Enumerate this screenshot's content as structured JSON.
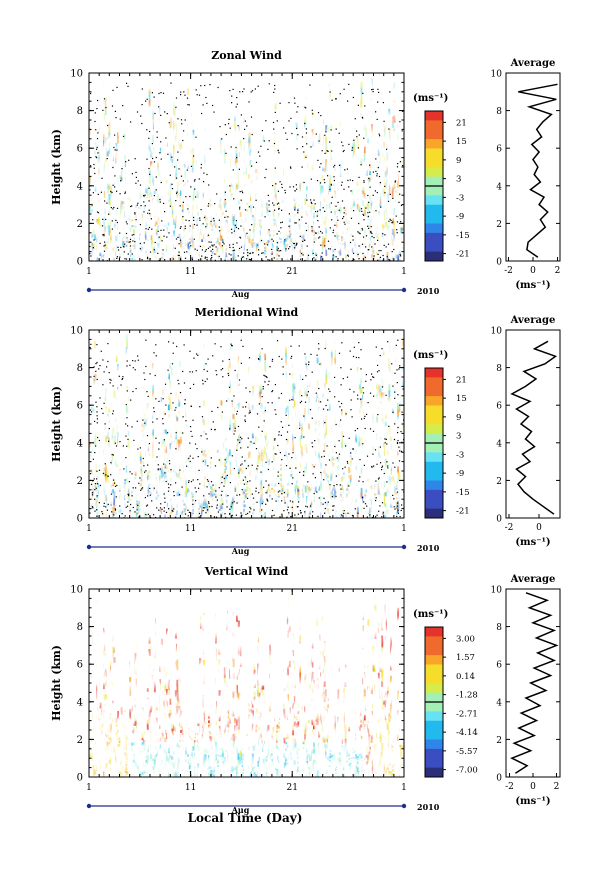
{
  "figure": {
    "xlabel": "Local Time (Day)",
    "month": "Aug",
    "year": "2010",
    "unit_label": "(ms⁻¹)",
    "ylabel": "Height (km)",
    "profile_title": "Average"
  },
  "chart_data": [
    {
      "type": "heatmap",
      "title": "Zonal Wind",
      "xlabel": "Aug",
      "ylabel": "Height (km)",
      "xticks": [
        "1",
        "11",
        "21",
        "1"
      ],
      "xlim_day": [
        1,
        32
      ],
      "yticks": [
        0,
        2,
        4,
        6,
        8,
        10
      ],
      "ylim": [
        0,
        10
      ],
      "colorbar": {
        "unit": "(ms⁻¹)",
        "ticks": [
          "21",
          "15",
          "9",
          "3",
          "-3",
          "-9",
          "-15",
          "-21"
        ],
        "range": [
          -24,
          24
        ]
      },
      "profile": {
        "title": "Average",
        "xlabel": "(ms⁻¹)",
        "xticks": [
          -2,
          0,
          2
        ],
        "xlim": [
          -2.2,
          2.2
        ],
        "heights": [
          0.2,
          0.6,
          1.0,
          1.4,
          1.8,
          2.2,
          2.6,
          3.0,
          3.4,
          3.8,
          4.2,
          4.6,
          5.0,
          5.4,
          5.8,
          6.2,
          6.6,
          7.0,
          7.4,
          7.8,
          8.2,
          8.6,
          9.0,
          9.4
        ],
        "values": [
          0.4,
          -0.5,
          -0.4,
          0.3,
          1.0,
          0.6,
          1.2,
          0.5,
          0.9,
          -0.2,
          0.6,
          0.1,
          0.4,
          0.0,
          0.5,
          -0.1,
          0.7,
          0.3,
          0.8,
          1.5,
          -0.3,
          1.9,
          -1.2,
          2.0
        ]
      }
    },
    {
      "type": "heatmap",
      "title": "Meridional Wind",
      "xlabel": "Aug",
      "ylabel": "Height (km)",
      "xticks": [
        "1",
        "11",
        "21",
        "1"
      ],
      "xlim_day": [
        1,
        32
      ],
      "yticks": [
        0,
        2,
        4,
        6,
        8,
        10
      ],
      "ylim": [
        0,
        10
      ],
      "colorbar": {
        "unit": "(ms⁻¹)",
        "ticks": [
          "21",
          "15",
          "9",
          "3",
          "-3",
          "-9",
          "-15",
          "-21"
        ],
        "range": [
          -24,
          24
        ]
      },
      "profile": {
        "title": "Average",
        "xlabel": "(ms⁻¹)",
        "xticks": [
          -2,
          0
        ],
        "xlim": [
          -2.2,
          1.4
        ],
        "heights": [
          0.2,
          0.6,
          1.0,
          1.4,
          1.8,
          2.2,
          2.6,
          3.0,
          3.4,
          3.8,
          4.2,
          4.6,
          5.0,
          5.4,
          5.8,
          6.2,
          6.6,
          7.0,
          7.4,
          7.8,
          8.2,
          8.6,
          9.0,
          9.4
        ],
        "values": [
          1.0,
          0.3,
          -0.4,
          -1.0,
          -1.4,
          -0.9,
          -1.5,
          -0.6,
          -1.1,
          -0.3,
          -0.9,
          -0.5,
          -1.2,
          -0.7,
          -1.5,
          -0.6,
          -1.8,
          -0.9,
          -0.2,
          -1.0,
          0.4,
          1.1,
          -0.3,
          0.6
        ]
      }
    },
    {
      "type": "heatmap",
      "title": "Vertical Wind",
      "xlabel": "Aug",
      "ylabel": "Height (km)",
      "xticks": [
        "1",
        "11",
        "21",
        "1"
      ],
      "xlim_day": [
        1,
        32
      ],
      "yticks": [
        0,
        2,
        4,
        6,
        8,
        10
      ],
      "ylim": [
        0,
        10
      ],
      "colorbar": {
        "unit": "(ms⁻¹)",
        "ticks": [
          "3.00",
          "1.57",
          "0.14",
          "-1.28",
          "-2.71",
          "-4.14",
          "-5.57",
          "-7.00"
        ],
        "range": [
          -7.7,
          3.7
        ]
      },
      "profile": {
        "title": "Average",
        "xlabel": "(ms⁻¹)",
        "xticks": [
          -2,
          0,
          2
        ],
        "xlim": [
          -2.3,
          2.3
        ],
        "heights": [
          0.2,
          0.6,
          1.0,
          1.4,
          1.8,
          2.2,
          2.6,
          3.0,
          3.4,
          3.8,
          4.2,
          4.6,
          5.0,
          5.4,
          5.8,
          6.2,
          6.6,
          7.0,
          7.4,
          7.8,
          8.2,
          8.6,
          9.0,
          9.4,
          9.8
        ],
        "values": [
          -1.5,
          -0.5,
          -1.8,
          -0.2,
          -1.6,
          0.1,
          -1.2,
          0.3,
          -1.0,
          0.6,
          -0.6,
          1.1,
          -0.2,
          1.5,
          0.1,
          1.8,
          0.4,
          2.0,
          0.3,
          1.8,
          0.0,
          1.5,
          -0.3,
          1.2,
          -0.6
        ]
      }
    }
  ]
}
